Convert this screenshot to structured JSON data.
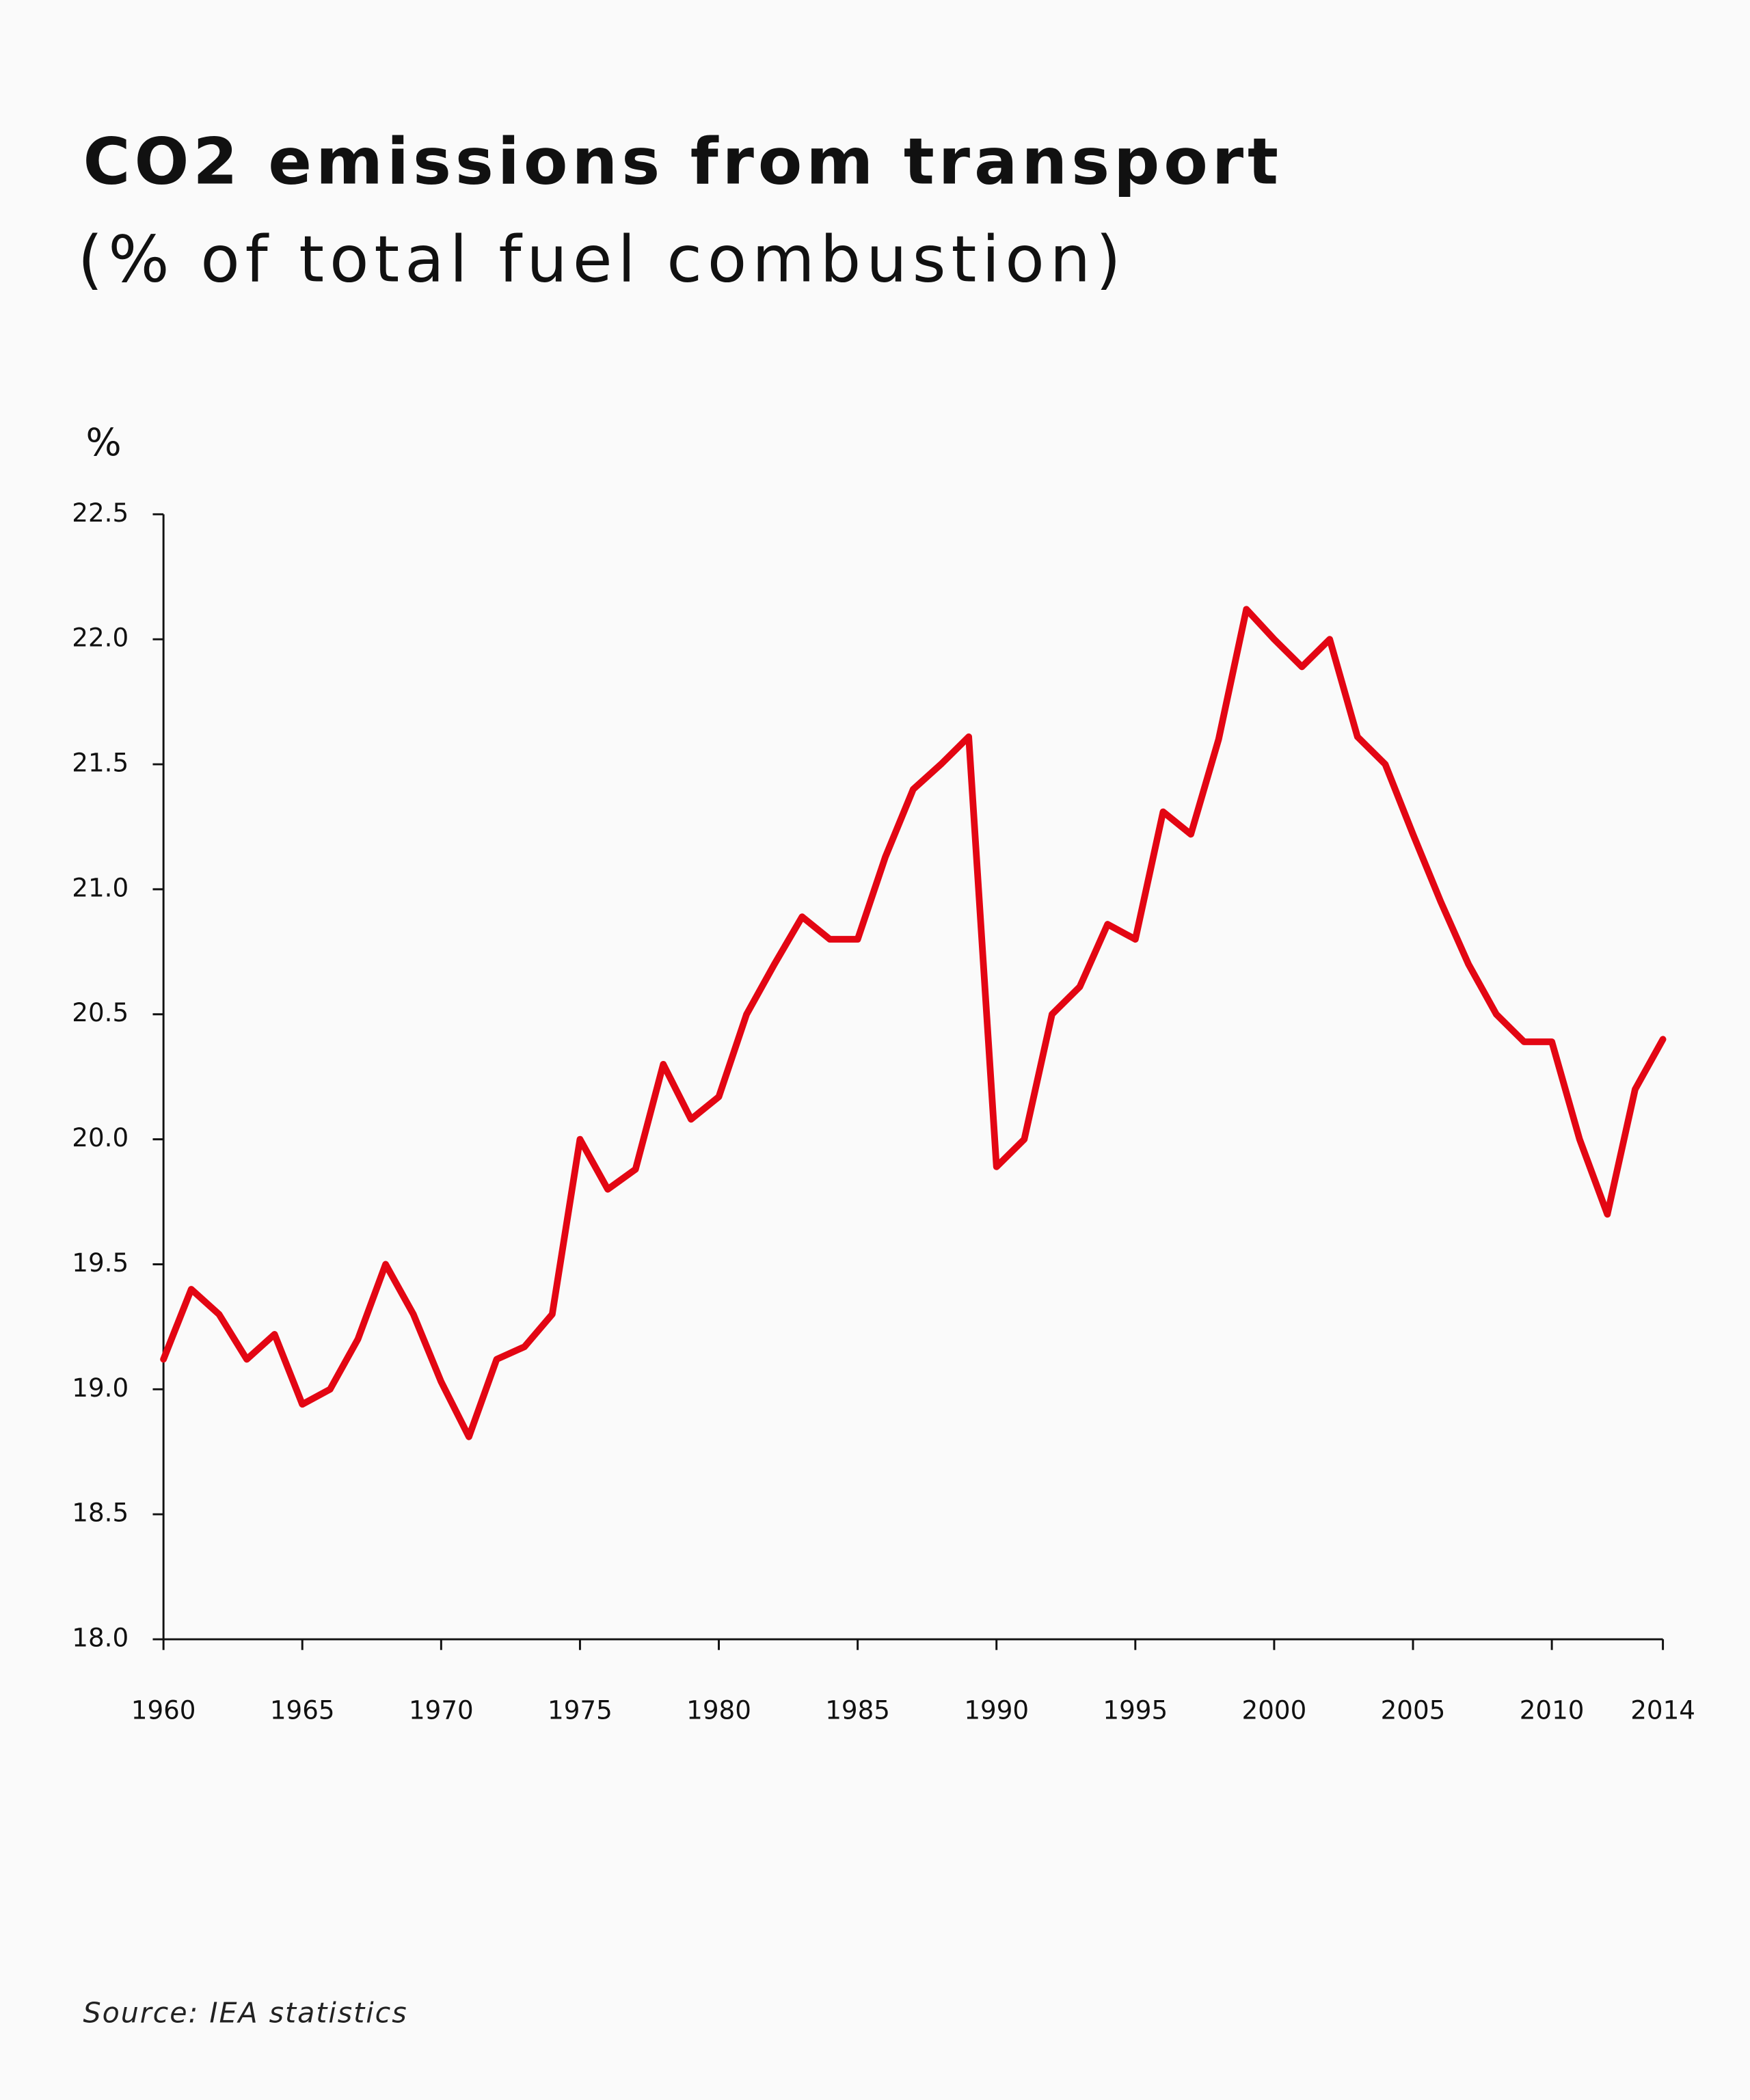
{
  "chart_data": {
    "type": "line",
    "title": "CO2 emissions from transport",
    "subtitle": "(% of total fuel combustion)",
    "y_label": "%",
    "source": "Source: IEA statistics",
    "color": "#e30613",
    "x": [
      1960,
      1961,
      1962,
      1963,
      1964,
      1965,
      1966,
      1967,
      1968,
      1969,
      1970,
      1971,
      1972,
      1973,
      1974,
      1975,
      1976,
      1977,
      1978,
      1979,
      1980,
      1981,
      1982,
      1983,
      1984,
      1985,
      1986,
      1987,
      1988,
      1989,
      1990,
      1991,
      1992,
      1993,
      1994,
      1995,
      1996,
      1997,
      1998,
      1999,
      2000,
      2001,
      2002,
      2003,
      2004,
      2005,
      2006,
      2007,
      2008,
      2009,
      2010,
      2011,
      2012,
      2013,
      2014
    ],
    "values": [
      19.12,
      19.4,
      19.3,
      19.12,
      19.22,
      18.94,
      19.0,
      19.2,
      19.5,
      19.3,
      19.03,
      18.81,
      19.12,
      19.17,
      19.3,
      20.0,
      19.8,
      19.88,
      20.3,
      20.08,
      20.17,
      20.5,
      20.7,
      20.89,
      20.8,
      20.8,
      21.13,
      21.4,
      21.5,
      21.61,
      19.89,
      20.0,
      20.5,
      20.61,
      20.86,
      20.8,
      21.31,
      21.22,
      21.6,
      22.12,
      22.0,
      21.89,
      22.0,
      21.61,
      21.5,
      21.22,
      20.95,
      20.7,
      20.5,
      20.39,
      20.39,
      20.0,
      19.7,
      20.2,
      20.4
    ],
    "xlim": [
      1960,
      2014
    ],
    "xticks": [
      1960,
      1965,
      1970,
      1975,
      1980,
      1985,
      1990,
      1995,
      2000,
      2005,
      2010,
      2014
    ],
    "ylim": [
      18.0,
      22.5
    ],
    "yticks": [
      {
        "value": 18.0,
        "label": "18.0"
      },
      18.5,
      {
        "value": 19.0,
        "label": "19.0"
      },
      19.5,
      {
        "value": 20.0,
        "label": "20.0"
      },
      20.5,
      {
        "value": 21.0,
        "label": "21.0"
      },
      21.5,
      {
        "value": 22.0,
        "label": "22.0"
      },
      22.5
    ],
    "grid": false
  }
}
